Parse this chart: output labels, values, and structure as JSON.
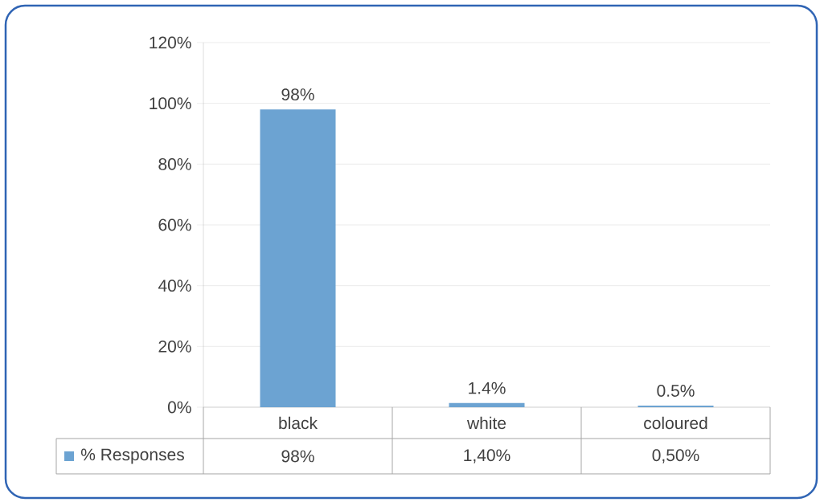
{
  "chart_data": {
    "type": "bar",
    "categories": [
      "black",
      "white",
      "coloured"
    ],
    "series": [
      {
        "name": "% Responses",
        "color": "#6ca3d2",
        "values": [
          98,
          1.4,
          0.5
        ],
        "value_labels": [
          "98%",
          "1.4%",
          "0.5%"
        ]
      }
    ],
    "ylim": [
      0,
      120
    ],
    "yticks": [
      {
        "value": 0,
        "label": "0%"
      },
      {
        "value": 20,
        "label": "20%"
      },
      {
        "value": 40,
        "label": "40%"
      },
      {
        "value": 60,
        "label": "60%"
      },
      {
        "value": 80,
        "label": "80%"
      },
      {
        "value": 100,
        "label": "100%"
      },
      {
        "value": 120,
        "label": "120%"
      }
    ],
    "grid": "y",
    "legend": "bottom left",
    "annotations": [
      "98%",
      "1,40%",
      "0,50%"
    ]
  }
}
